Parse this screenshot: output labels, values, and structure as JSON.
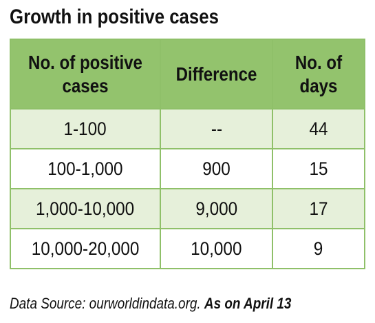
{
  "title": "Growth in positive cases",
  "table": {
    "headers": [
      "No. of positive cases",
      "Difference",
      "No. of days"
    ],
    "rows": [
      [
        "1-100",
        "--",
        "44"
      ],
      [
        "100-1,000",
        "900",
        "15"
      ],
      [
        "1,000-10,000",
        "9,000",
        "17"
      ],
      [
        "10,000-20,000",
        "10,000",
        "9"
      ]
    ]
  },
  "source": {
    "prefix": "Data Source: ourworldindata.org.",
    "date": "As on April 13"
  },
  "colors": {
    "header_bg": "#93c36d",
    "row_alt_bg": "#e6f0da",
    "border": "#8fc069"
  }
}
